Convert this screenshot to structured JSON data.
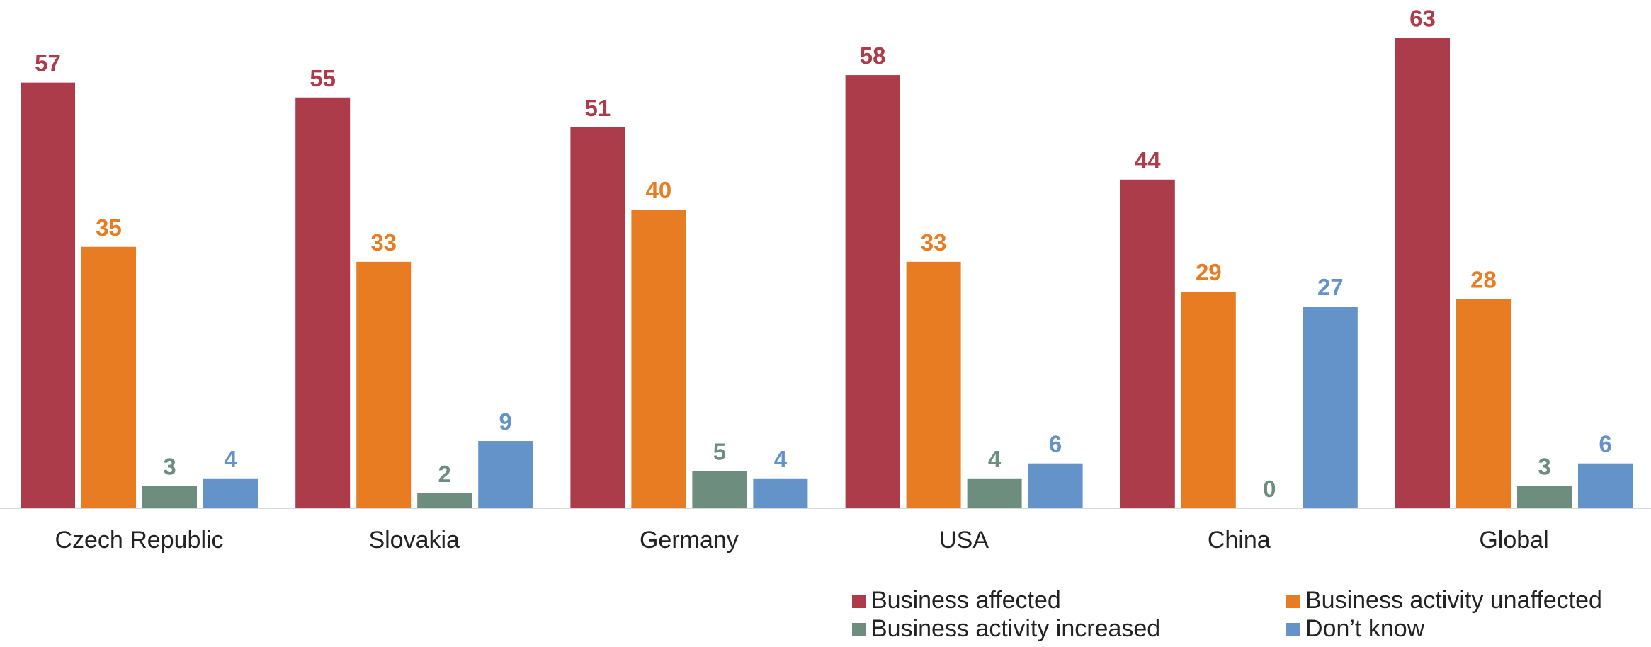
{
  "chart_data": {
    "type": "bar",
    "title": "",
    "xlabel": "",
    "ylabel": "",
    "ylim": [
      0,
      65
    ],
    "grid": false,
    "legend_position": "bottom-right",
    "categories": [
      "Czech Republic",
      "Slovakia",
      "Germany",
      "USA",
      "China",
      "Global"
    ],
    "series": [
      {
        "name": "Business affected",
        "color": "#AC3C4A",
        "values": [
          57,
          55,
          51,
          58,
          44,
          63
        ]
      },
      {
        "name": "Business activity unaffected",
        "color": "#E87C22",
        "values": [
          35,
          33,
          40,
          33,
          29,
          28
        ]
      },
      {
        "name": "Business activity increased",
        "color": "#6D8E7F",
        "values": [
          3,
          2,
          5,
          4,
          0,
          3
        ]
      },
      {
        "name": "Don’t know",
        "color": "#6493C9",
        "values": [
          4,
          9,
          4,
          6,
          27,
          6
        ]
      }
    ]
  }
}
